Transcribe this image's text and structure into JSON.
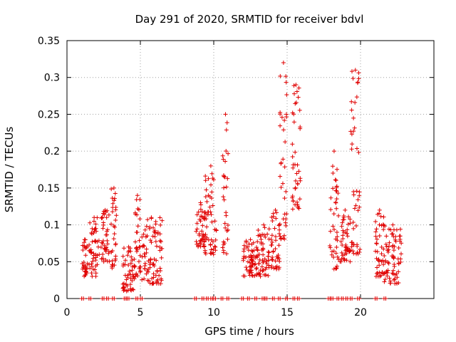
{
  "chart_data": {
    "type": "scatter",
    "title": "Day 291 of 2020, SRMTID for receiver bdvl",
    "xlabel": "GPS time / hours",
    "ylabel": "SRMTID / TECUs",
    "xlim": [
      0,
      25
    ],
    "ylim": [
      0,
      0.35
    ],
    "xticks": [
      0,
      5,
      10,
      15,
      20
    ],
    "yticks": [
      0,
      0.05,
      0.1,
      0.15,
      0.2,
      0.25,
      0.3,
      0.35
    ],
    "ytick_labels": [
      "0",
      "0.05",
      "0.1",
      "0.15",
      "0.2",
      "0.25",
      "0.3",
      "0.35"
    ],
    "grid": true,
    "marker": "+",
    "color": "#e00000",
    "clusters": [
      {
        "x_start": 1.0,
        "x_end": 1.4,
        "y_low": 0.03,
        "y_high": 0.08
      },
      {
        "x_start": 1.5,
        "x_end": 2.2,
        "y_low": 0.03,
        "y_high": 0.11
      },
      {
        "x_start": 2.3,
        "x_end": 2.9,
        "y_low": 0.05,
        "y_high": 0.12
      },
      {
        "x_start": 3.0,
        "x_end": 3.4,
        "y_low": 0.04,
        "y_high": 0.15
      },
      {
        "x_start": 3.8,
        "x_end": 4.6,
        "y_low": 0.01,
        "y_high": 0.07
      },
      {
        "x_start": 4.6,
        "x_end": 5.0,
        "y_low": 0.03,
        "y_high": 0.14
      },
      {
        "x_start": 5.0,
        "x_end": 6.5,
        "y_low": 0.02,
        "y_high": 0.11
      },
      {
        "x_start": 8.8,
        "x_end": 9.4,
        "y_low": 0.07,
        "y_high": 0.13
      },
      {
        "x_start": 9.4,
        "x_end": 10.2,
        "y_low": 0.06,
        "y_high": 0.18
      },
      {
        "x_start": 10.6,
        "x_end": 11.0,
        "y_low": 0.06,
        "y_high": 0.25
      },
      {
        "x_start": 12.0,
        "x_end": 13.0,
        "y_low": 0.03,
        "y_high": 0.08
      },
      {
        "x_start": 13.0,
        "x_end": 13.8,
        "y_low": 0.03,
        "y_high": 0.1
      },
      {
        "x_start": 13.9,
        "x_end": 14.5,
        "y_low": 0.04,
        "y_high": 0.12
      },
      {
        "x_start": 14.5,
        "x_end": 15.0,
        "y_low": 0.08,
        "y_high": 0.32
      },
      {
        "x_start": 15.3,
        "x_end": 15.9,
        "y_low": 0.12,
        "y_high": 0.29
      },
      {
        "x_start": 17.9,
        "x_end": 18.5,
        "y_low": 0.04,
        "y_high": 0.2
      },
      {
        "x_start": 18.6,
        "x_end": 19.3,
        "y_low": 0.05,
        "y_high": 0.12
      },
      {
        "x_start": 19.3,
        "x_end": 20.0,
        "y_low": 0.06,
        "y_high": 0.31
      },
      {
        "x_start": 21.0,
        "x_end": 21.6,
        "y_low": 0.03,
        "y_high": 0.12
      },
      {
        "x_start": 21.6,
        "x_end": 22.8,
        "y_low": 0.02,
        "y_high": 0.1
      }
    ],
    "zero_points_x": [
      1.0,
      1.5,
      2.4,
      2.7,
      3.1,
      3.9,
      4.1,
      4.7,
      5.0,
      8.7,
      9.2,
      9.5,
      9.8,
      10.0,
      10.5,
      10.9,
      11.9,
      12.3,
      12.8,
      13.3,
      13.5,
      14.0,
      14.4,
      14.9,
      15.4,
      15.7,
      17.8,
      18.0,
      18.4,
      18.7,
      19.0,
      19.3,
      19.8,
      21.0,
      21.6
    ]
  }
}
